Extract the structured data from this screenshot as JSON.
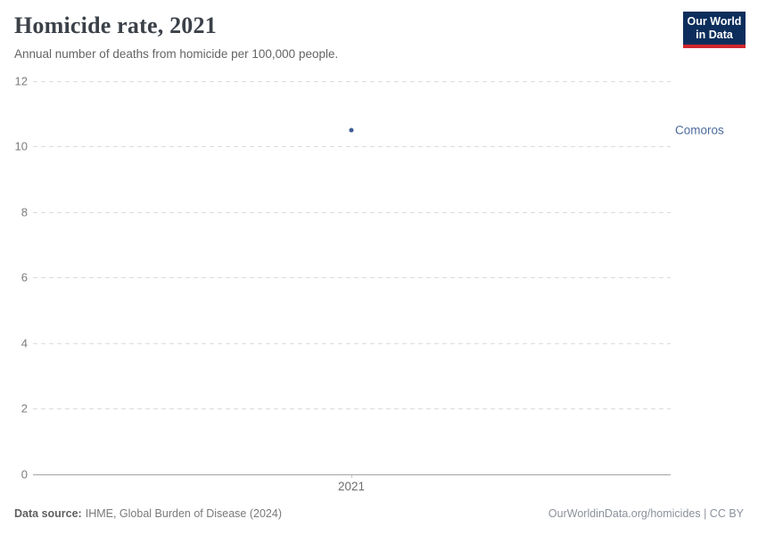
{
  "header": {
    "title": "Homicide rate, 2021",
    "subtitle": "Annual number of deaths from homicide per 100,000 people.",
    "logo": {
      "line1": "Our World",
      "line2": "in Data",
      "bg_color": "#0d2e5c",
      "accent_color": "#d1272e"
    }
  },
  "chart_data": {
    "type": "scatter",
    "title": "Homicide rate, 2021",
    "subtitle": "Annual number of deaths from homicide per 100,000 people.",
    "xlabel": "",
    "ylabel": "",
    "ylim": [
      0,
      12
    ],
    "yticks": [
      0,
      2,
      4,
      6,
      8,
      10,
      12
    ],
    "x": [
      2021
    ],
    "x_tick_label": "2021",
    "series": [
      {
        "name": "Comoros",
        "values": [
          10.5
        ],
        "color": "#4c6a9c",
        "point_color": "#3d5c94"
      }
    ],
    "grid": "horizontal-dashed",
    "legend_position": "right-of-point"
  },
  "footer": {
    "source_label": "Data source:",
    "source_text": "IHME, Global Burden of Disease (2024)",
    "credit": "OurWorldinData.org/homicides | CC BY"
  }
}
